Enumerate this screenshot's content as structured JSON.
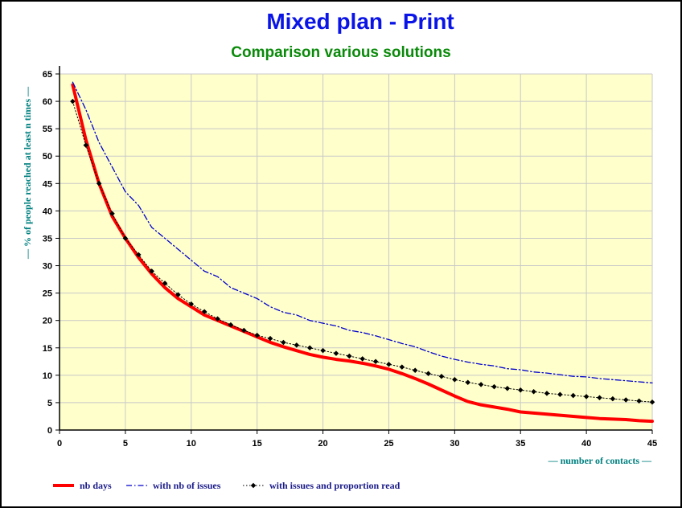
{
  "chart_data": {
    "type": "line",
    "title": "Mixed plan - Print",
    "subtitle": "Comparison various solutions",
    "xlabel": "— number of contacts —",
    "ylabel": "— % of people reached at least n times —",
    "xlim": [
      0,
      45
    ],
    "ylim": [
      0,
      65
    ],
    "xticks": [
      0,
      5,
      10,
      15,
      20,
      25,
      30,
      35,
      40,
      45
    ],
    "yticks": [
      0,
      5,
      10,
      15,
      20,
      25,
      30,
      35,
      40,
      45,
      50,
      55,
      60,
      65
    ],
    "grid": true,
    "legend_position": "bottom",
    "colors": {
      "title": "#0a14e6",
      "subtitle": "#0a8a0a",
      "axis_label": "#008080",
      "plot_bg": "#ffffcc",
      "grid": "#c8c8c8"
    },
    "series": [
      {
        "name": "nb days",
        "color": "#ff0000",
        "style": "solid-thick",
        "x": [
          1,
          2,
          3,
          4,
          5,
          6,
          7,
          8,
          9,
          10,
          11,
          12,
          13,
          14,
          15,
          16,
          17,
          18,
          19,
          20,
          21,
          22,
          23,
          24,
          25,
          26,
          27,
          28,
          29,
          30,
          31,
          32,
          33,
          34,
          35,
          36,
          37,
          38,
          39,
          40,
          41,
          42,
          43,
          44,
          45
        ],
        "values": [
          63,
          53,
          45,
          39,
          35,
          31.5,
          28.5,
          26,
          24,
          22.5,
          21,
          20,
          19,
          18,
          17,
          16,
          15.2,
          14.5,
          13.8,
          13.3,
          12.9,
          12.6,
          12.2,
          11.7,
          11.1,
          10.3,
          9.4,
          8.4,
          7.3,
          6.2,
          5.2,
          4.6,
          4.2,
          3.8,
          3.3,
          3.1,
          2.9,
          2.7,
          2.5,
          2.3,
          2.1,
          2.0,
          1.9,
          1.7,
          1.6
        ]
      },
      {
        "name": "with nb of issues",
        "color": "#0000cc",
        "style": "dashdot",
        "x": [
          1,
          2,
          3,
          4,
          5,
          6,
          7,
          8,
          9,
          10,
          11,
          12,
          13,
          14,
          15,
          16,
          17,
          18,
          19,
          20,
          21,
          22,
          23,
          24,
          25,
          26,
          27,
          28,
          29,
          30,
          31,
          32,
          33,
          34,
          35,
          36,
          37,
          38,
          39,
          40,
          41,
          42,
          43,
          44,
          45
        ],
        "values": [
          63.5,
          58.5,
          52.5,
          48,
          43.5,
          41,
          37,
          35,
          33,
          31,
          29,
          28,
          26,
          25,
          24,
          22.5,
          21.5,
          21,
          20,
          19.5,
          19,
          18.2,
          17.8,
          17.2,
          16.5,
          15.8,
          15.2,
          14.3,
          13.5,
          12.9,
          12.4,
          12,
          11.7,
          11.2,
          11,
          10.6,
          10.4,
          10.1,
          9.8,
          9.7,
          9.4,
          9.2,
          9.0,
          8.8,
          8.6
        ]
      },
      {
        "name": "with issues and proportion read",
        "color": "#000000",
        "style": "dotted-markers",
        "x": [
          1,
          2,
          3,
          4,
          5,
          6,
          7,
          8,
          9,
          10,
          11,
          12,
          13,
          14,
          15,
          16,
          17,
          18,
          19,
          20,
          21,
          22,
          23,
          24,
          25,
          26,
          27,
          28,
          29,
          30,
          31,
          32,
          33,
          34,
          35,
          36,
          37,
          38,
          39,
          40,
          41,
          42,
          43,
          44,
          45
        ],
        "values": [
          60,
          52,
          45,
          39.5,
          35,
          32,
          29,
          26.8,
          24.7,
          23,
          21.6,
          20.3,
          19.2,
          18.2,
          17.3,
          16.7,
          16,
          15.5,
          15,
          14.5,
          14,
          13.5,
          13,
          12.5,
          12,
          11.5,
          10.9,
          10.3,
          9.8,
          9.2,
          8.7,
          8.3,
          7.9,
          7.6,
          7.3,
          7,
          6.7,
          6.5,
          6.3,
          6.1,
          5.9,
          5.7,
          5.5,
          5.3,
          5.1
        ]
      }
    ]
  }
}
